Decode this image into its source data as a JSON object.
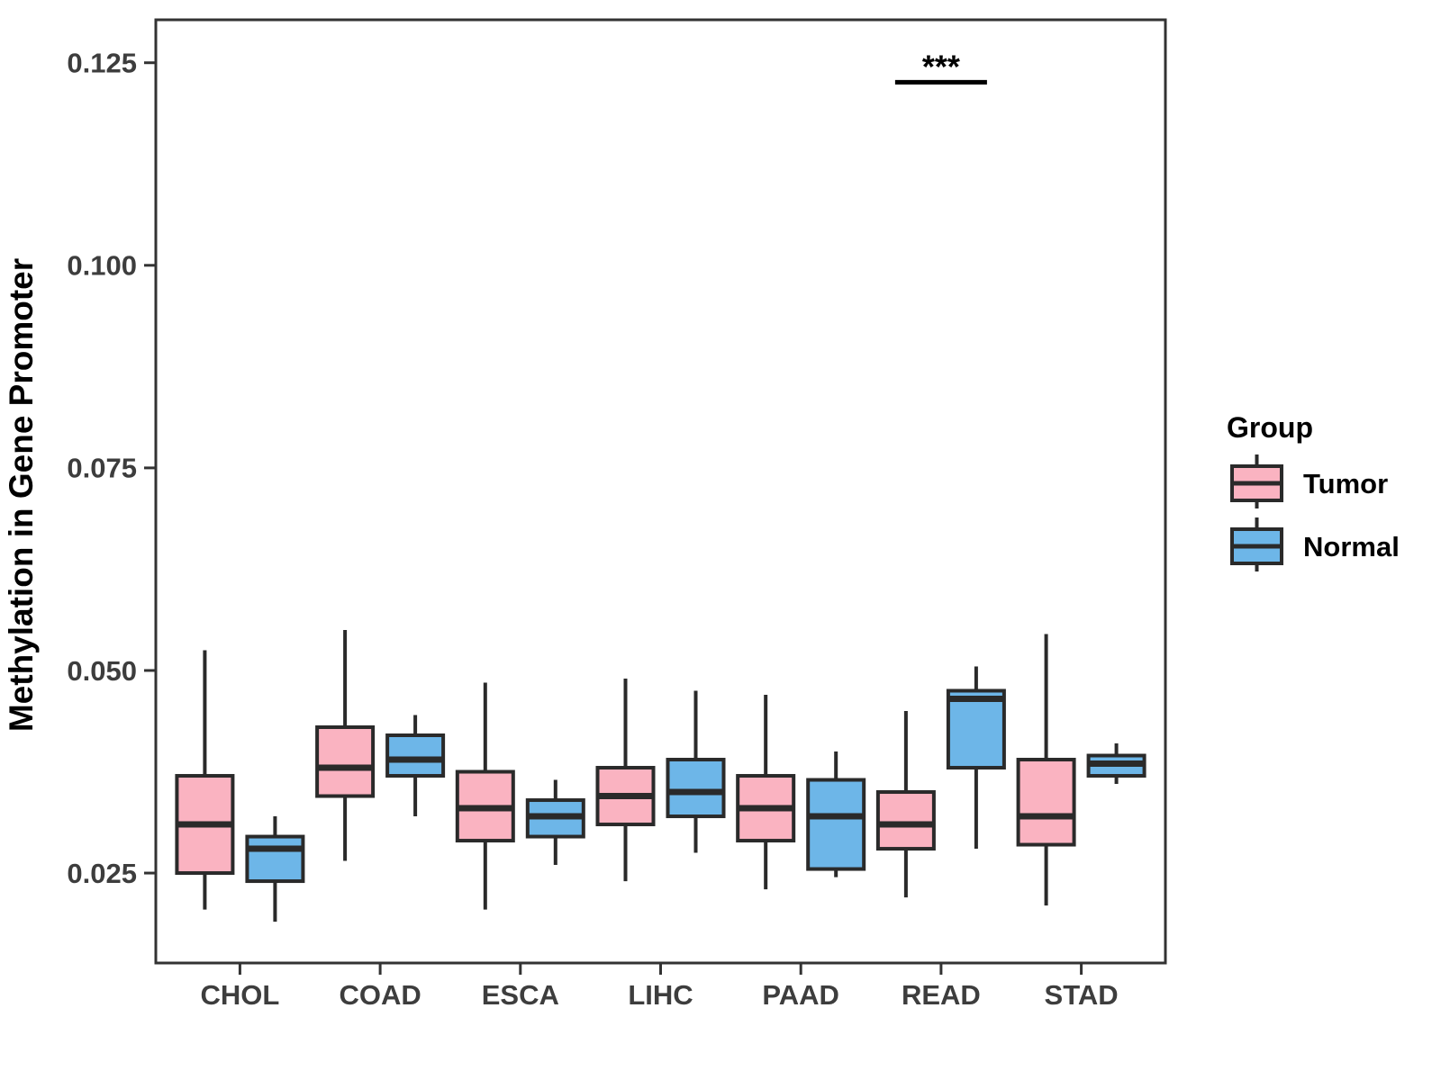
{
  "figure": {
    "background": "#ffffff"
  },
  "style": {
    "box_border": "#2a2a2a",
    "panel_border": "#333333",
    "tick_color": "#333333",
    "tick_label_color": "#3d3d3d",
    "annotation_color": "#000000"
  },
  "chart_data": {
    "type": "boxplot",
    "title": "",
    "xlabel": "",
    "ylabel": "Methylation in Gene Promoter",
    "categories": [
      "CHOL",
      "COAD",
      "ESCA",
      "LIHC",
      "PAAD",
      "READ",
      "STAD"
    ],
    "y_ticks": [
      "0.025",
      "0.050",
      "0.075",
      "0.100",
      "0.125"
    ],
    "y_tick_values": [
      0.025,
      0.05,
      0.075,
      0.1,
      0.125
    ],
    "ylim": [
      0.0139,
      0.1303
    ],
    "grid": false,
    "legend": {
      "title": "Group",
      "position": "right",
      "entries": [
        {
          "label": "Tumor",
          "color": "#FAB3C1"
        },
        {
          "label": "Normal",
          "color": "#6DB6E8"
        }
      ]
    },
    "series": [
      {
        "name": "Tumor",
        "color": "#FAB3C1",
        "boxes": [
          {
            "category": "CHOL",
            "whisker_low": 0.0205,
            "q1": 0.025,
            "median": 0.031,
            "q3": 0.037,
            "whisker_high": 0.0525
          },
          {
            "category": "COAD",
            "whisker_low": 0.0265,
            "q1": 0.0345,
            "median": 0.038,
            "q3": 0.043,
            "whisker_high": 0.055
          },
          {
            "category": "ESCA",
            "whisker_low": 0.0205,
            "q1": 0.029,
            "median": 0.033,
            "q3": 0.0375,
            "whisker_high": 0.0485
          },
          {
            "category": "LIHC",
            "whisker_low": 0.024,
            "q1": 0.031,
            "median": 0.0345,
            "q3": 0.038,
            "whisker_high": 0.049
          },
          {
            "category": "PAAD",
            "whisker_low": 0.023,
            "q1": 0.029,
            "median": 0.033,
            "q3": 0.037,
            "whisker_high": 0.047
          },
          {
            "category": "READ",
            "whisker_low": 0.022,
            "q1": 0.028,
            "median": 0.031,
            "q3": 0.035,
            "whisker_high": 0.045
          },
          {
            "category": "STAD",
            "whisker_low": 0.021,
            "q1": 0.0285,
            "median": 0.032,
            "q3": 0.039,
            "whisker_high": 0.0545
          }
        ]
      },
      {
        "name": "Normal",
        "color": "#6DB6E8",
        "boxes": [
          {
            "category": "CHOL",
            "whisker_low": 0.019,
            "q1": 0.024,
            "median": 0.028,
            "q3": 0.0295,
            "whisker_high": 0.032
          },
          {
            "category": "COAD",
            "whisker_low": 0.032,
            "q1": 0.037,
            "median": 0.039,
            "q3": 0.042,
            "whisker_high": 0.0445
          },
          {
            "category": "ESCA",
            "whisker_low": 0.026,
            "q1": 0.0295,
            "median": 0.032,
            "q3": 0.034,
            "whisker_high": 0.0365
          },
          {
            "category": "LIHC",
            "whisker_low": 0.0275,
            "q1": 0.032,
            "median": 0.035,
            "q3": 0.039,
            "whisker_high": 0.0475
          },
          {
            "category": "PAAD",
            "whisker_low": 0.0245,
            "q1": 0.0255,
            "median": 0.032,
            "q3": 0.0365,
            "whisker_high": 0.04
          },
          {
            "category": "READ",
            "whisker_low": 0.028,
            "q1": 0.038,
            "median": 0.0465,
            "q3": 0.0475,
            "whisker_high": 0.0505
          },
          {
            "category": "STAD",
            "whisker_low": 0.036,
            "q1": 0.037,
            "median": 0.0385,
            "q3": 0.0395,
            "whisker_high": 0.041
          }
        ]
      }
    ],
    "annotation": {
      "text": "***",
      "category": "READ",
      "line_y": 0.1226
    }
  }
}
